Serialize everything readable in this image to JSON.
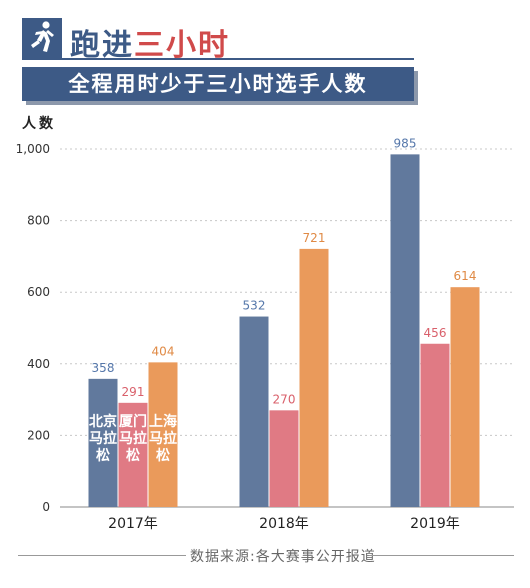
{
  "header": {
    "title_part1": "跑进",
    "title_part2": "三小时",
    "subtitle": "全程用时少于三小时选手人数"
  },
  "source": "数据来源:各大赛事公开报道",
  "chart_data": {
    "type": "bar",
    "ylabel": "人数",
    "xlabel": "",
    "categories": [
      "2017年",
      "2018年",
      "2019年"
    ],
    "ylim": [
      0,
      1000
    ],
    "yticks": [
      0,
      200,
      400,
      600,
      800,
      1000
    ],
    "ytick_labels": [
      "0",
      "200",
      "400",
      "600",
      "800",
      "1,000"
    ],
    "grid": "horizontal-dashed",
    "legend": "in-bar-labels-first-category",
    "series": [
      {
        "name": "北京马拉松",
        "color": "#61799d",
        "label_color": "#5577aa",
        "values": [
          358,
          532,
          985
        ]
      },
      {
        "name": "厦门马拉松",
        "color": "#e07a84",
        "label_color": "#d9606b",
        "values": [
          291,
          270,
          456
        ]
      },
      {
        "name": "上海马拉松",
        "color": "#ea9a5b",
        "label_color": "#e08a45",
        "values": [
          404,
          721,
          614
        ]
      }
    ]
  }
}
